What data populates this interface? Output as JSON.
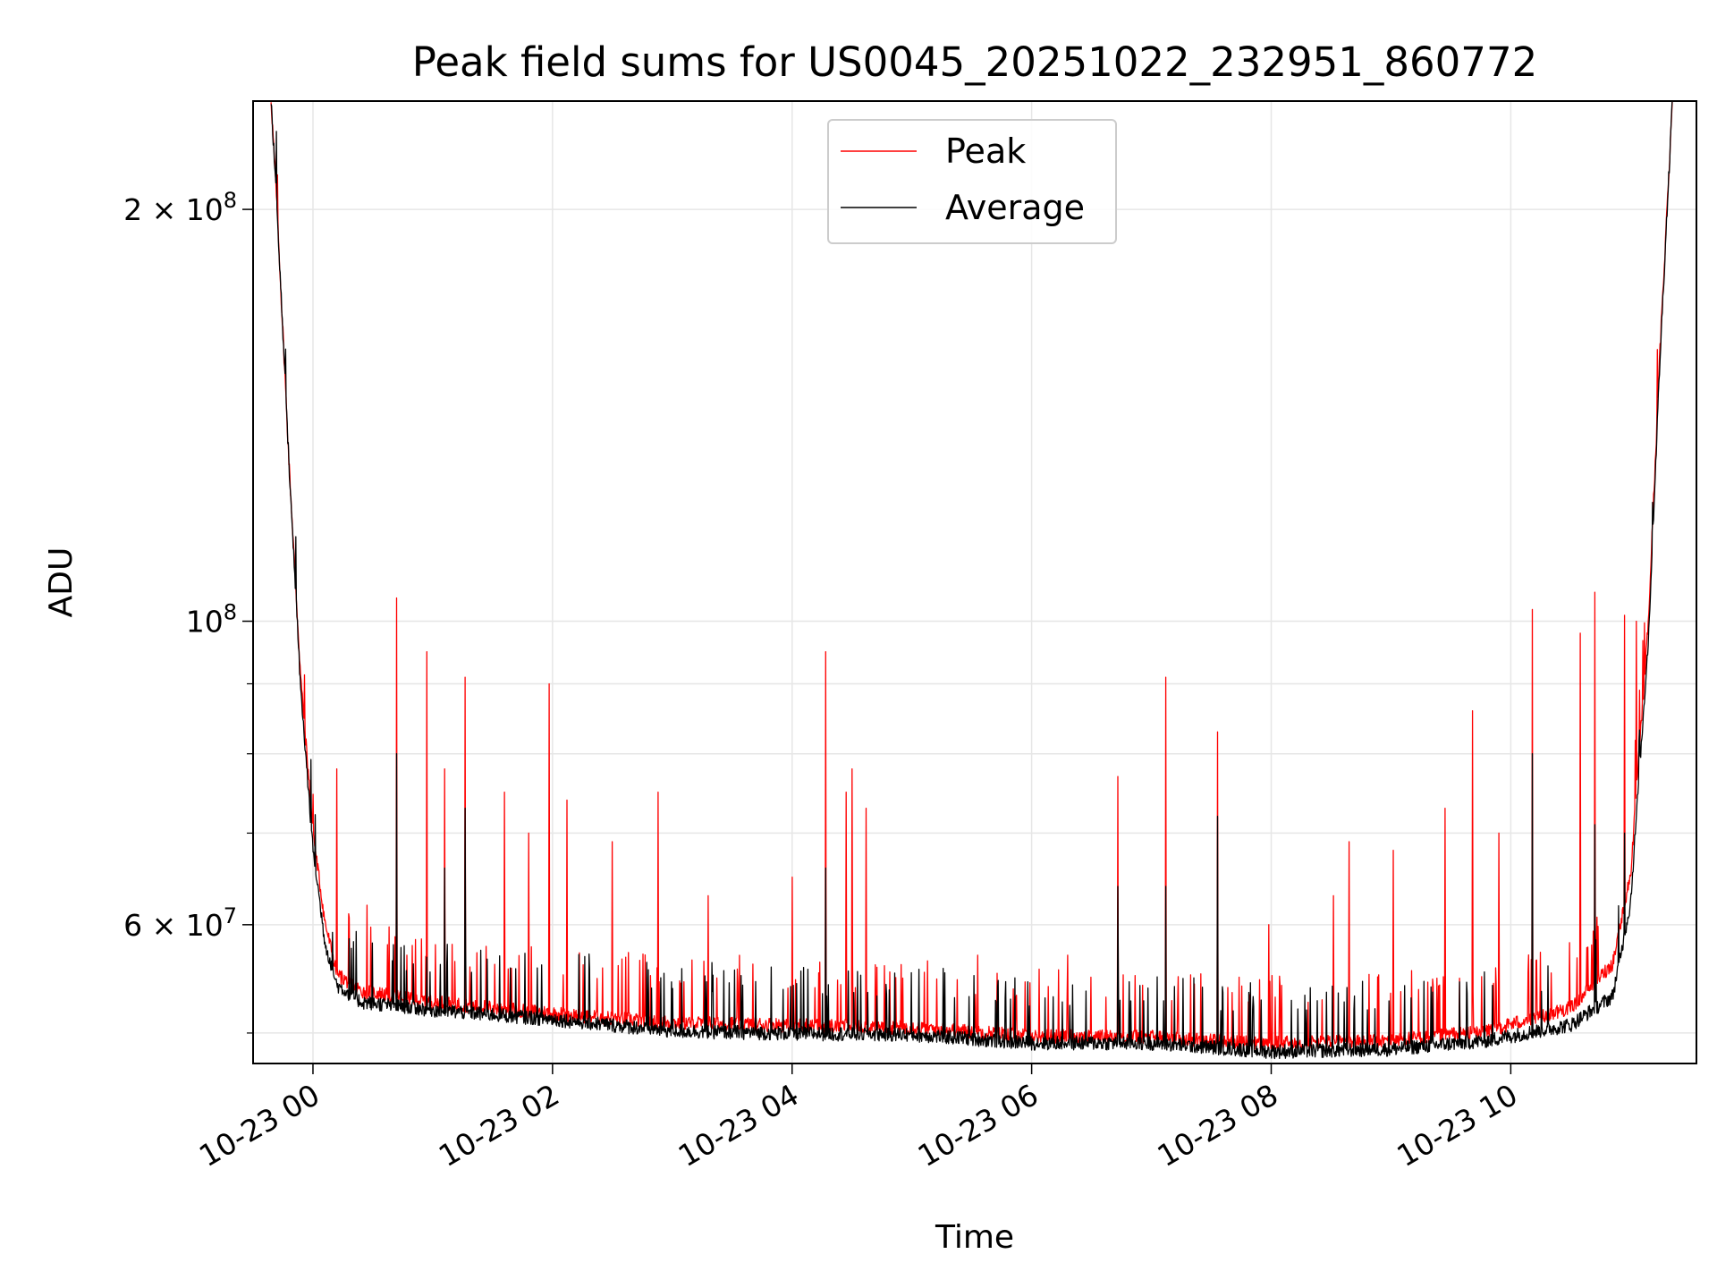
{
  "chart_data": {
    "type": "line",
    "title": "Peak field sums for US0045_20251022_232951_860772",
    "xlabel": "Time",
    "ylabel": "ADU",
    "yscale": "log",
    "ylim": [
      47500000,
      240000000
    ],
    "xlim_hours": [
      -0.5,
      11.55
    ],
    "grid": true,
    "legend_position": "top-center",
    "x_ticks": [
      {
        "hour": 0,
        "label": "10-23 00"
      },
      {
        "hour": 2,
        "label": "10-23 02"
      },
      {
        "hour": 4,
        "label": "10-23 04"
      },
      {
        "hour": 6,
        "label": "10-23 06"
      },
      {
        "hour": 8,
        "label": "10-23 08"
      },
      {
        "hour": 10,
        "label": "10-23 10"
      }
    ],
    "y_major_ticks": [
      {
        "value": 60000000,
        "mantissa": "6",
        "exponent": "7"
      },
      {
        "value": 100000000,
        "mantissa": "",
        "exponent": "8"
      },
      {
        "value": 200000000,
        "mantissa": "2",
        "exponent": "8"
      }
    ],
    "y_minor_values": [
      50000000,
      70000000,
      80000000,
      90000000
    ],
    "series": [
      {
        "name": "Peak",
        "color": "#ff0000",
        "baseline": [
          [
            -0.35,
            240000000
          ],
          [
            -0.3,
            200000000
          ],
          [
            -0.2,
            130000000
          ],
          [
            -0.1,
            90000000
          ],
          [
            0.0,
            70000000
          ],
          [
            0.1,
            60000000
          ],
          [
            0.2,
            55000000
          ],
          [
            0.4,
            53500000
          ],
          [
            1.0,
            52500000
          ],
          [
            2.0,
            51500000
          ],
          [
            3.0,
            50700000
          ],
          [
            4.0,
            50500000
          ],
          [
            5.0,
            50300000
          ],
          [
            6.0,
            49600000
          ],
          [
            7.0,
            49500000
          ],
          [
            8.0,
            49000000
          ],
          [
            9.0,
            49200000
          ],
          [
            9.8,
            50000000
          ],
          [
            10.5,
            52000000
          ],
          [
            10.85,
            56000000
          ],
          [
            11.0,
            65000000
          ],
          [
            11.15,
            100000000
          ],
          [
            11.25,
            160000000
          ],
          [
            11.35,
            240000000
          ]
        ],
        "spikes": [
          [
            0.2,
            78000000
          ],
          [
            0.45,
            62000000
          ],
          [
            0.7,
            104000000
          ],
          [
            0.95,
            95000000
          ],
          [
            1.1,
            78000000
          ],
          [
            1.27,
            91000000
          ],
          [
            1.6,
            75000000
          ],
          [
            1.8,
            70000000
          ],
          [
            1.97,
            90000000
          ],
          [
            2.12,
            74000000
          ],
          [
            2.5,
            69000000
          ],
          [
            2.88,
            75000000
          ],
          [
            3.3,
            63000000
          ],
          [
            4.0,
            65000000
          ],
          [
            4.28,
            95000000
          ],
          [
            4.45,
            75000000
          ],
          [
            4.5,
            78000000
          ],
          [
            4.62,
            73000000
          ],
          [
            5.55,
            57000000
          ],
          [
            6.3,
            57000000
          ],
          [
            6.72,
            77000000
          ],
          [
            7.12,
            91000000
          ],
          [
            7.55,
            83000000
          ],
          [
            7.98,
            60000000
          ],
          [
            8.52,
            63000000
          ],
          [
            8.65,
            69000000
          ],
          [
            9.02,
            68000000
          ],
          [
            9.45,
            73000000
          ],
          [
            9.68,
            86000000
          ],
          [
            9.9,
            70000000
          ],
          [
            10.18,
            102000000
          ],
          [
            10.58,
            98000000
          ],
          [
            10.7,
            105000000
          ],
          [
            10.95,
            101000000
          ],
          [
            11.05,
            100000000
          ]
        ]
      },
      {
        "name": "Average",
        "color": "#000000",
        "baseline": [
          [
            -0.35,
            240000000
          ],
          [
            -0.3,
            200000000
          ],
          [
            -0.2,
            130000000
          ],
          [
            -0.1,
            88000000
          ],
          [
            0.0,
            68000000
          ],
          [
            0.1,
            58000000
          ],
          [
            0.2,
            54000000
          ],
          [
            0.4,
            52500000
          ],
          [
            1.0,
            51800000
          ],
          [
            2.0,
            51000000
          ],
          [
            3.0,
            50000000
          ],
          [
            4.0,
            49800000
          ],
          [
            5.0,
            49700000
          ],
          [
            6.0,
            49000000
          ],
          [
            7.0,
            49000000
          ],
          [
            8.0,
            48300000
          ],
          [
            9.0,
            48500000
          ],
          [
            9.8,
            49200000
          ],
          [
            10.5,
            50500000
          ],
          [
            10.85,
            53000000
          ],
          [
            11.0,
            62000000
          ],
          [
            11.15,
            97000000
          ],
          [
            11.25,
            158000000
          ],
          [
            11.35,
            240000000
          ]
        ],
        "spikes": [
          [
            0.7,
            80000000
          ],
          [
            1.27,
            73000000
          ],
          [
            1.1,
            66000000
          ],
          [
            4.28,
            66000000
          ],
          [
            6.72,
            64000000
          ],
          [
            7.12,
            64000000
          ],
          [
            7.55,
            72000000
          ],
          [
            10.18,
            80000000
          ],
          [
            10.7,
            71000000
          ],
          [
            10.95,
            70000000
          ]
        ]
      }
    ]
  }
}
